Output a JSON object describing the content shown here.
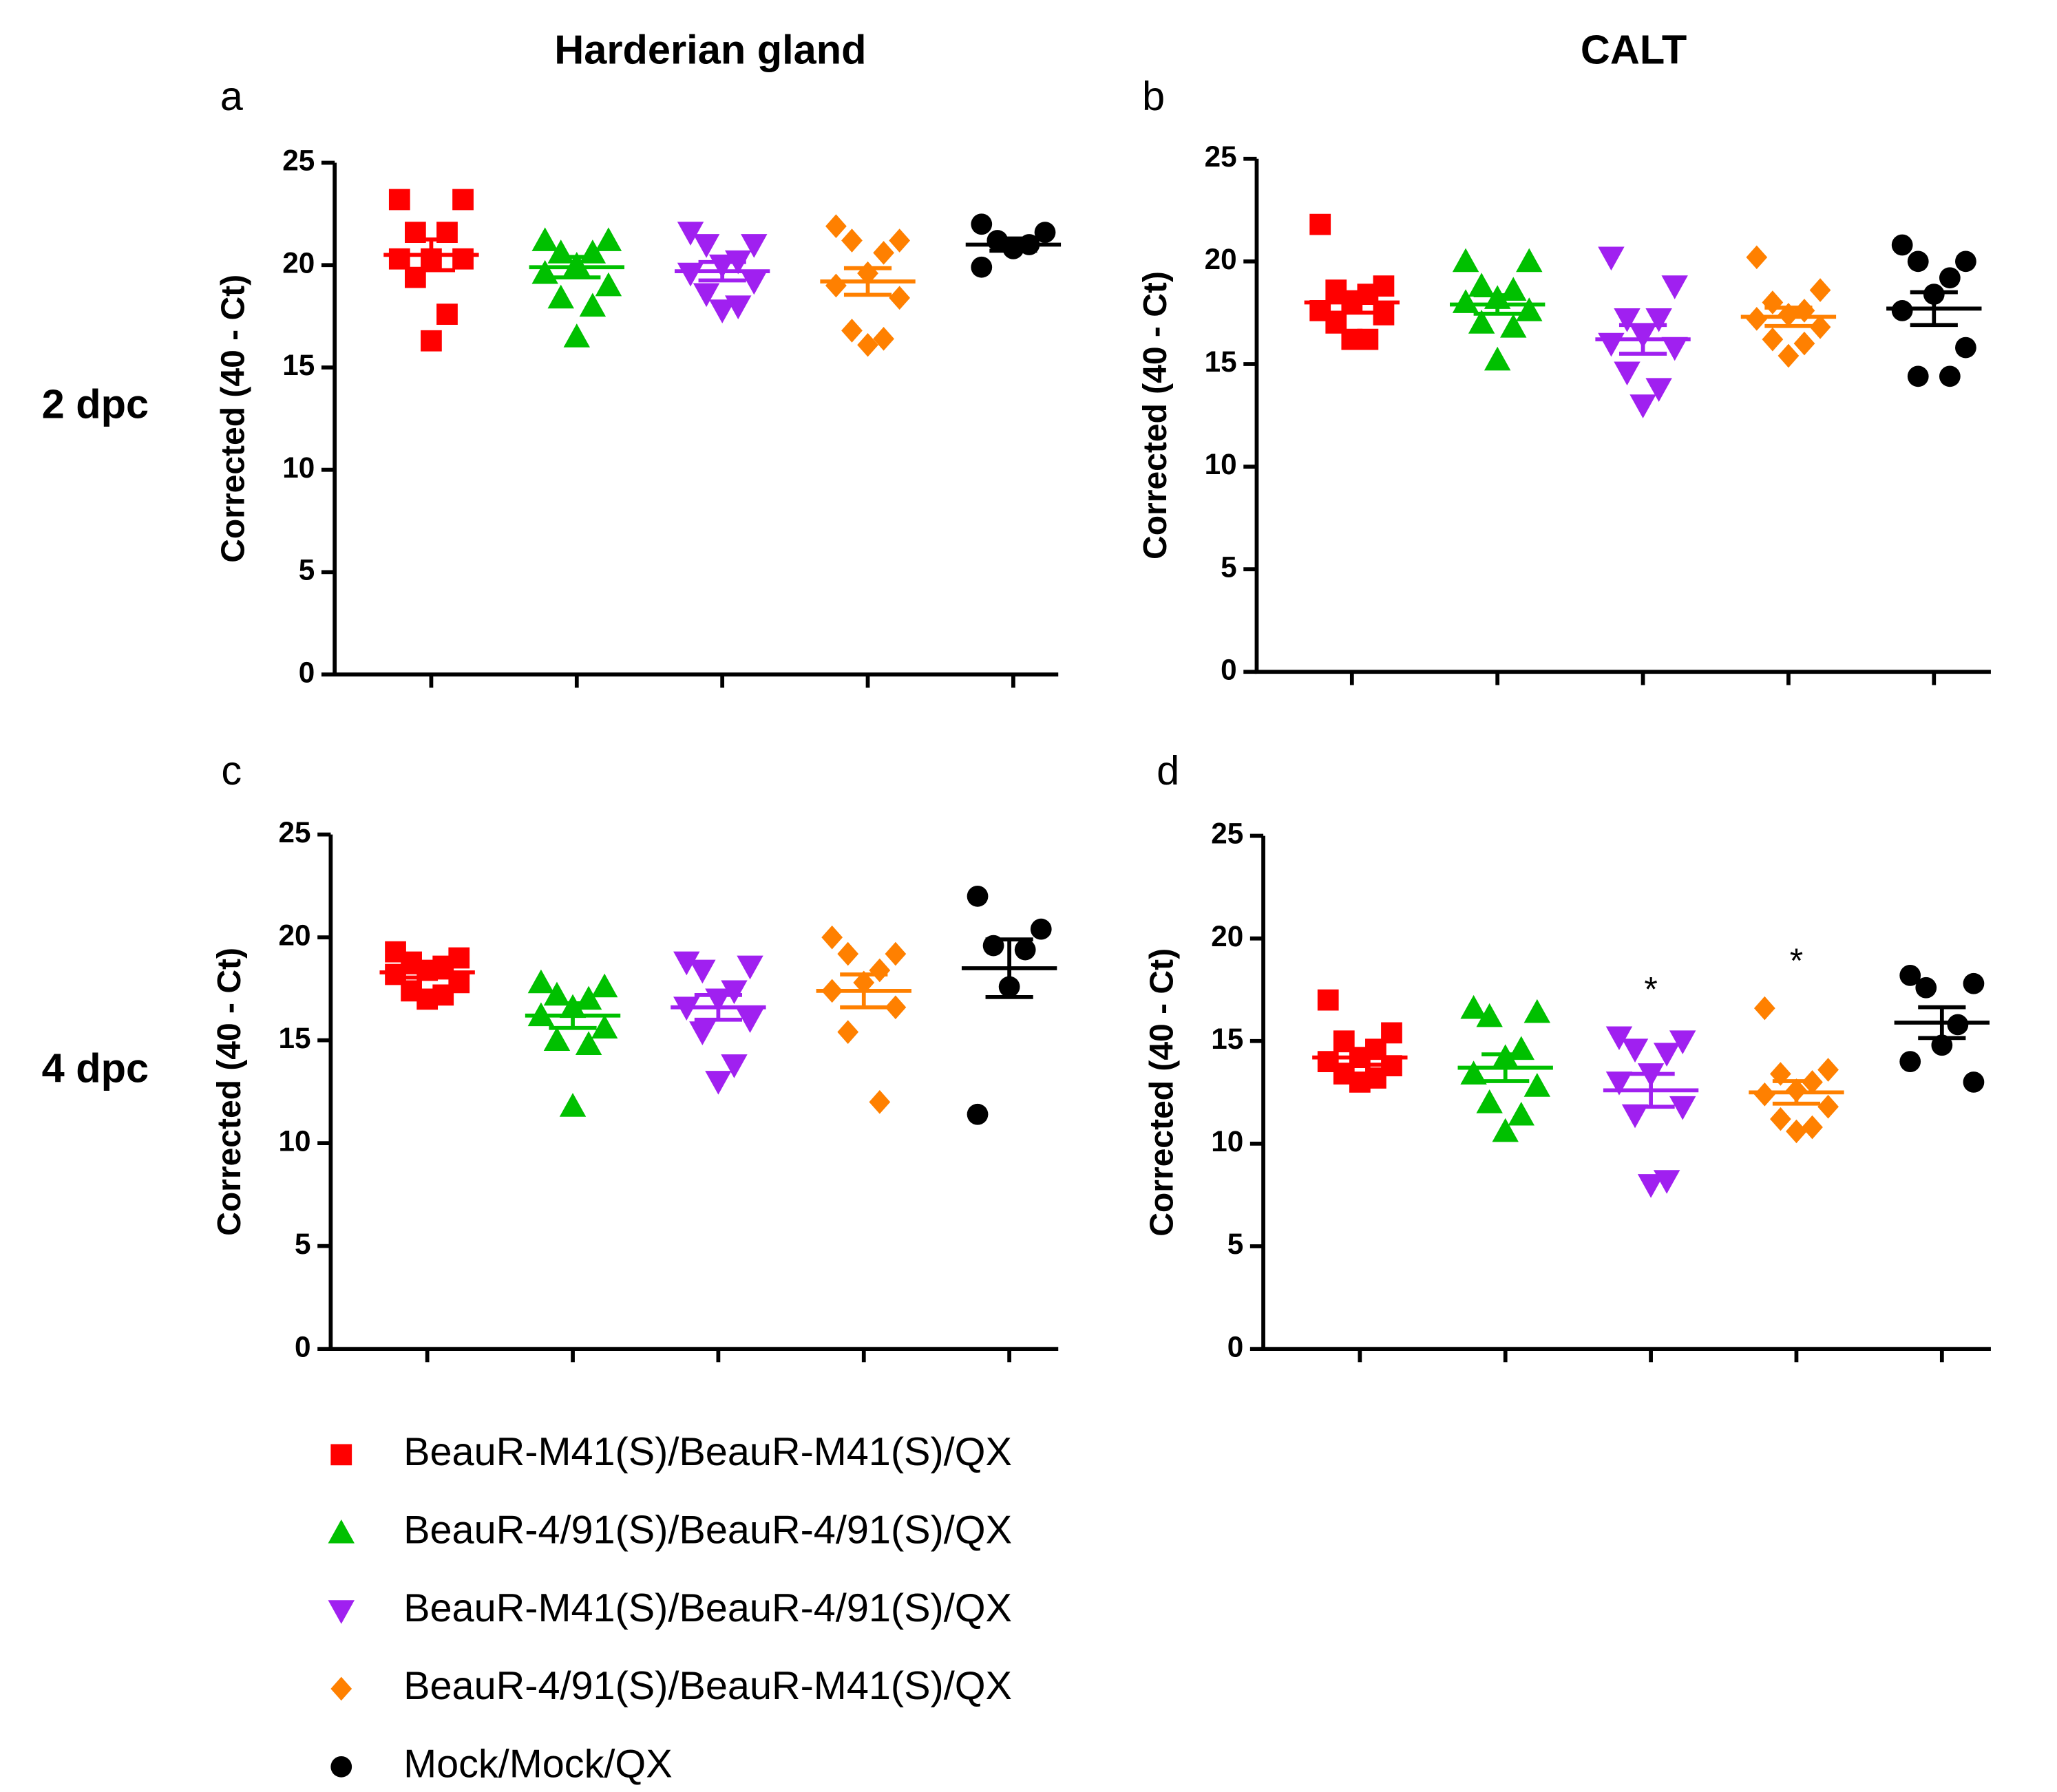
{
  "figure": {
    "columns": [
      "Harderian gland",
      "CALT"
    ],
    "rows": [
      "2 dpc",
      "4 dpc"
    ]
  },
  "legend": [
    {
      "name": "BeauR-M41(S)/BeauR-M41(S)/QX",
      "color": "#ff0000",
      "marker": "square"
    },
    {
      "name": "BeauR-4/91(S)/BeauR-4/91(S)/QX",
      "color": "#00c000",
      "marker": "triangle-up"
    },
    {
      "name": "BeauR-M41(S)/BeauR-4/91(S)/QX",
      "color": "#a020f0",
      "marker": "triangle-down"
    },
    {
      "name": "BeauR-4/91(S)/BeauR-M41(S)/QX",
      "color": "#ff8000",
      "marker": "diamond"
    },
    {
      "name": "Mock/Mock/QX",
      "color": "#000000",
      "marker": "circle"
    }
  ],
  "chart_data": [
    {
      "type": "scatter",
      "label": "a",
      "ylabel": "Corrected (40 - Ct)",
      "ylim": [
        0,
        25
      ],
      "yticks": [
        0,
        5,
        10,
        15,
        20,
        25
      ],
      "series": [
        {
          "values": [
            23.2,
            23.2,
            21.6,
            21.6,
            20.3,
            20.3,
            20.3,
            19.4,
            17.6,
            16.3
          ],
          "mean": 20.5,
          "sem": 0.75
        },
        {
          "values": [
            21.2,
            21.2,
            20.6,
            20.6,
            20.0,
            19.6,
            19.0,
            18.4,
            18.0,
            16.5
          ],
          "mean": 19.9,
          "sem": 0.5
        },
        {
          "values": [
            21.6,
            21.0,
            21.0,
            20.2,
            20.0,
            19.6,
            19.2,
            18.6,
            18.0,
            17.8
          ],
          "mean": 19.7,
          "sem": 0.45
        },
        {
          "values": [
            21.9,
            21.2,
            21.2,
            20.6,
            19.6,
            19.0,
            18.4,
            16.8,
            16.4,
            16.1
          ],
          "mean": 19.2,
          "sem": 0.65
        },
        {
          "values": [
            22.0,
            21.6,
            21.2,
            21.0,
            20.8,
            19.9
          ],
          "mean": 21.0,
          "sem": 0.3
        }
      ]
    },
    {
      "type": "scatter",
      "label": "b",
      "ylabel": "Corrected (40 - Ct)",
      "ylim": [
        0,
        25
      ],
      "yticks": [
        0,
        5,
        10,
        15,
        20,
        25
      ],
      "series": [
        {
          "values": [
            21.8,
            18.8,
            18.6,
            18.4,
            18.0,
            17.6,
            17.4,
            17.0,
            16.2,
            16.2
          ],
          "mean": 18.0,
          "sem": 0.5
        },
        {
          "values": [
            20.0,
            20.0,
            18.8,
            18.6,
            18.2,
            18.0,
            17.6,
            17.0,
            16.8,
            15.2
          ],
          "mean": 17.9,
          "sem": 0.45
        },
        {
          "values": [
            20.2,
            18.8,
            17.2,
            17.2,
            16.4,
            16.0,
            15.8,
            14.6,
            13.8,
            13.0
          ],
          "mean": 16.2,
          "sem": 0.7
        },
        {
          "values": [
            20.2,
            18.6,
            18.0,
            17.6,
            17.4,
            17.2,
            16.8,
            16.2,
            16.0,
            15.4
          ],
          "mean": 17.3,
          "sem": 0.45
        },
        {
          "values": [
            20.8,
            20.0,
            20.0,
            19.2,
            18.4,
            17.6,
            15.8,
            14.4,
            14.4
          ],
          "mean": 17.7,
          "sem": 0.8
        }
      ]
    },
    {
      "type": "scatter",
      "label": "c",
      "ylabel": "Corrected (40 - Ct)",
      "ylim": [
        0,
        25
      ],
      "yticks": [
        0,
        5,
        10,
        15,
        20,
        25
      ],
      "series": [
        {
          "values": [
            19.3,
            19.0,
            18.8,
            18.6,
            18.4,
            18.2,
            17.8,
            17.4,
            17.2,
            17.0
          ],
          "mean": 18.3,
          "sem": 0.25
        },
        {
          "values": [
            17.8,
            17.6,
            17.2,
            17.0,
            16.6,
            16.2,
            15.6,
            15.0,
            14.8,
            11.8
          ],
          "mean": 16.2,
          "sem": 0.6
        },
        {
          "values": [
            18.8,
            18.6,
            18.4,
            17.4,
            17.0,
            16.6,
            16.0,
            15.4,
            13.8,
            13.0
          ],
          "mean": 16.6,
          "sem": 0.6
        },
        {
          "values": [
            20.0,
            19.2,
            19.2,
            18.4,
            17.8,
            17.4,
            16.6,
            15.4,
            12.0
          ],
          "mean": 17.4,
          "sem": 0.8
        },
        {
          "values": [
            22.0,
            20.4,
            19.6,
            19.4,
            17.6,
            11.4
          ],
          "mean": 18.5,
          "sem": 1.4
        }
      ]
    },
    {
      "type": "scatter",
      "label": "d",
      "ylabel": "Corrected (40 - Ct)",
      "ylim": [
        0,
        25
      ],
      "yticks": [
        0,
        5,
        10,
        15,
        20,
        25
      ],
      "series": [
        {
          "values": [
            17.0,
            15.4,
            15.0,
            14.6,
            14.2,
            14.0,
            13.8,
            13.4,
            13.2,
            13.0
          ],
          "mean": 14.2,
          "sem": 0.35
        },
        {
          "values": [
            16.6,
            16.4,
            16.2,
            14.6,
            14.2,
            13.4,
            12.8,
            12.0,
            11.4,
            10.6
          ],
          "mean": 13.7,
          "sem": 0.65
        },
        {
          "values": [
            15.2,
            15.0,
            14.6,
            14.4,
            13.4,
            13.0,
            11.8,
            11.4,
            8.2,
            8.0
          ],
          "mean": 12.6,
          "sem": 0.8
        },
        {
          "values": [
            16.6,
            13.6,
            13.4,
            13.0,
            12.6,
            12.4,
            11.8,
            11.2,
            10.8,
            10.6
          ],
          "mean": 12.5,
          "sem": 0.55
        },
        {
          "values": [
            18.2,
            17.8,
            17.6,
            15.8,
            14.8,
            14.0,
            13.0
          ],
          "mean": 15.9,
          "sem": 0.75
        }
      ],
      "annotations": [
        {
          "series": 2,
          "text": "*"
        },
        {
          "series": 3,
          "text": "*"
        }
      ]
    }
  ]
}
